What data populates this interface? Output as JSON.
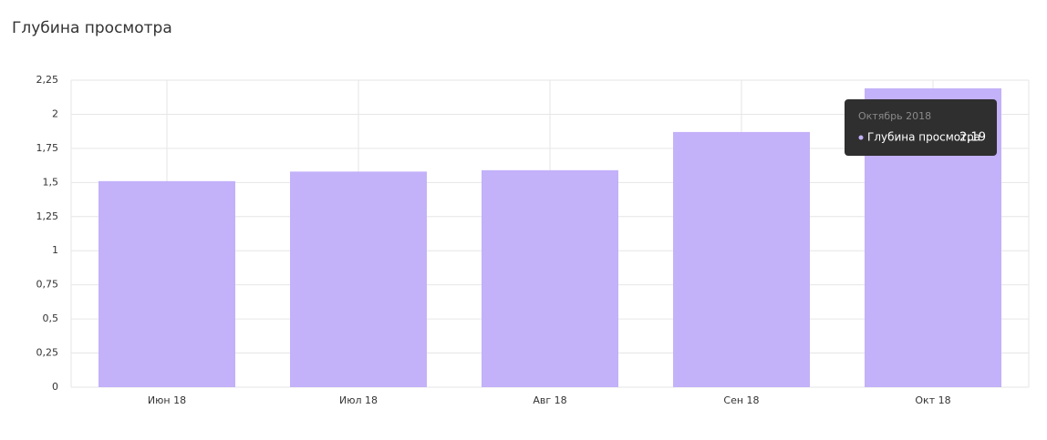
{
  "chart_data": {
    "type": "bar",
    "title": "Глубина просмотра",
    "categories": [
      "Июн 18",
      "Июл 18",
      "Авг 18",
      "Сен 18",
      "Окт 18"
    ],
    "series": [
      {
        "name": "Глубина просмотра",
        "color": "#c3b1f9",
        "values": [
          1.51,
          1.58,
          1.59,
          1.87,
          2.19
        ],
        "value_labels": [
          null,
          null,
          null,
          null,
          "2,19"
        ]
      }
    ],
    "ylim": [
      0,
      2.25
    ],
    "yticks": [
      0,
      {
        "value": 0.25,
        "label": "0,25"
      },
      {
        "value": 0.5,
        "label": "0,5"
      },
      {
        "value": 0.75,
        "label": "0,75"
      },
      1,
      {
        "value": 1.25,
        "label": "1,25"
      },
      {
        "value": 1.5,
        "label": "1,5"
      },
      {
        "value": 1.75,
        "label": "1,75"
      },
      2,
      {
        "value": 2.25,
        "label": "2,25"
      }
    ],
    "grid": true,
    "tooltip": {
      "title": "Октябрь 2018"
    }
  }
}
